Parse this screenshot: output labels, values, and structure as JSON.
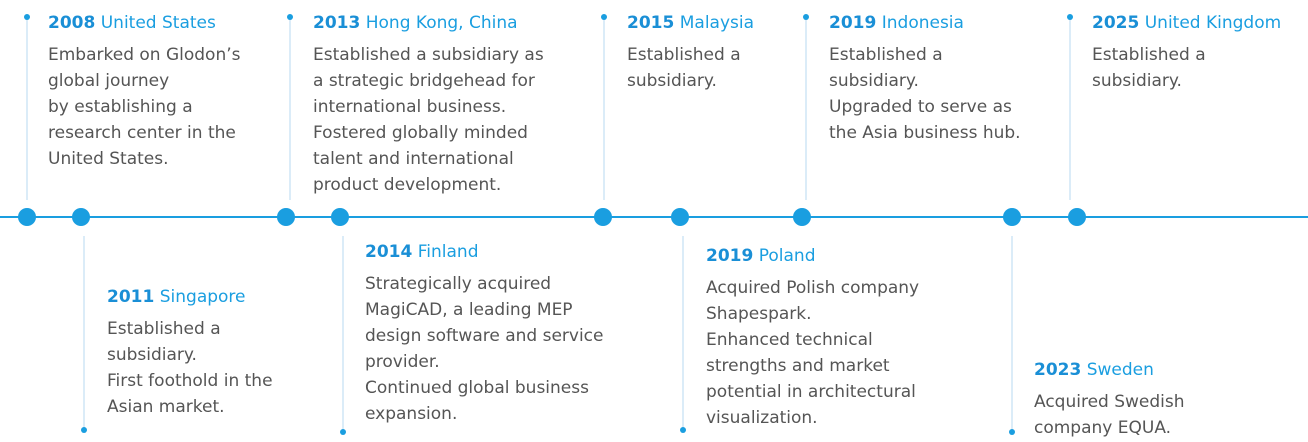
{
  "events": [
    {
      "year": "2008",
      "place": "United States",
      "lines": [
        "Embarked on Glodon’s",
        "global journey",
        "by establishing a",
        "research center in the",
        "United States."
      ]
    },
    {
      "year": "2011",
      "place": "Singapore",
      "lines": [
        "Established a",
        "subsidiary.",
        "First foothold in the",
        "Asian market."
      ]
    },
    {
      "year": "2013",
      "place": "Hong Kong, China",
      "lines": [
        "Established a subsidiary as",
        "a strategic bridgehead for",
        "international business.",
        "Fostered globally minded",
        "talent and international",
        "product development."
      ]
    },
    {
      "year": "2014",
      "place": "Finland",
      "lines": [
        "Strategically acquired",
        "MagiCAD, a leading MEP",
        "design software and service",
        "provider.",
        "Continued global business",
        "expansion."
      ]
    },
    {
      "year": "2015",
      "place": "Malaysia",
      "lines": [
        "Established a",
        "subsidiary."
      ]
    },
    {
      "year": "2019",
      "place": "Poland",
      "lines": [
        "Acquired Polish company",
        "Shapespark.",
        "Enhanced technical",
        "strengths and market",
        "potential in architectural",
        "visualization."
      ]
    },
    {
      "year": "2019",
      "place": "Indonesia",
      "lines": [
        "Established a",
        "subsidiary.",
        "Upgraded to serve as",
        "the Asia business hub."
      ]
    },
    {
      "year": "2023",
      "place": "Sweden",
      "lines": [
        "Acquired Swedish",
        "company EQUA."
      ]
    },
    {
      "year": "2025",
      "place": "United Kingdom",
      "lines": [
        "Established a",
        "subsidiary."
      ]
    }
  ]
}
